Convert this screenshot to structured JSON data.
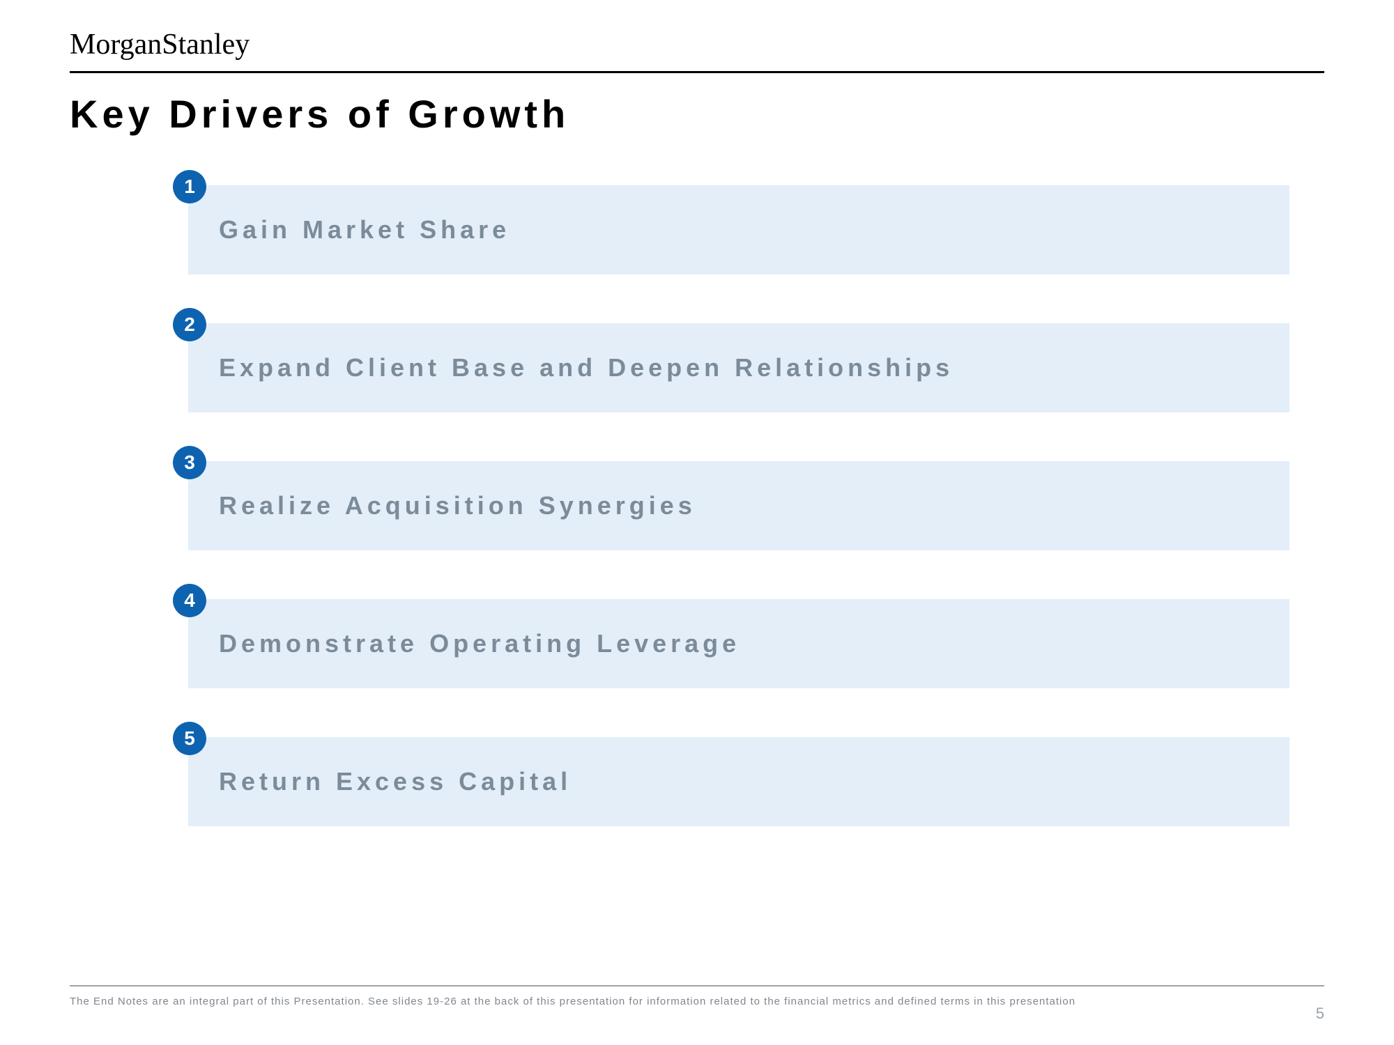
{
  "brand": {
    "first": "Morgan",
    "second": "Stanley"
  },
  "title": "Key Drivers of Growth",
  "colors": {
    "badge_bg": "#0e63b0",
    "badge_fg": "#ffffff",
    "bar_bg": "#e3eef9",
    "bar_text": "#7c8b99"
  },
  "drivers": [
    {
      "n": "1",
      "label": "Gain Market Share"
    },
    {
      "n": "2",
      "label": "Expand Client Base and Deepen Relationships"
    },
    {
      "n": "3",
      "label": "Realize Acquisition Synergies"
    },
    {
      "n": "4",
      "label": "Demonstrate Operating Leverage"
    },
    {
      "n": "5",
      "label": "Return Excess Capital"
    }
  ],
  "footer_note": "The End Notes are an integral part of this Presentation. See slides 19-26 at the back of this presentation for information related to the financial metrics and defined terms in this presentation",
  "page_number": "5"
}
